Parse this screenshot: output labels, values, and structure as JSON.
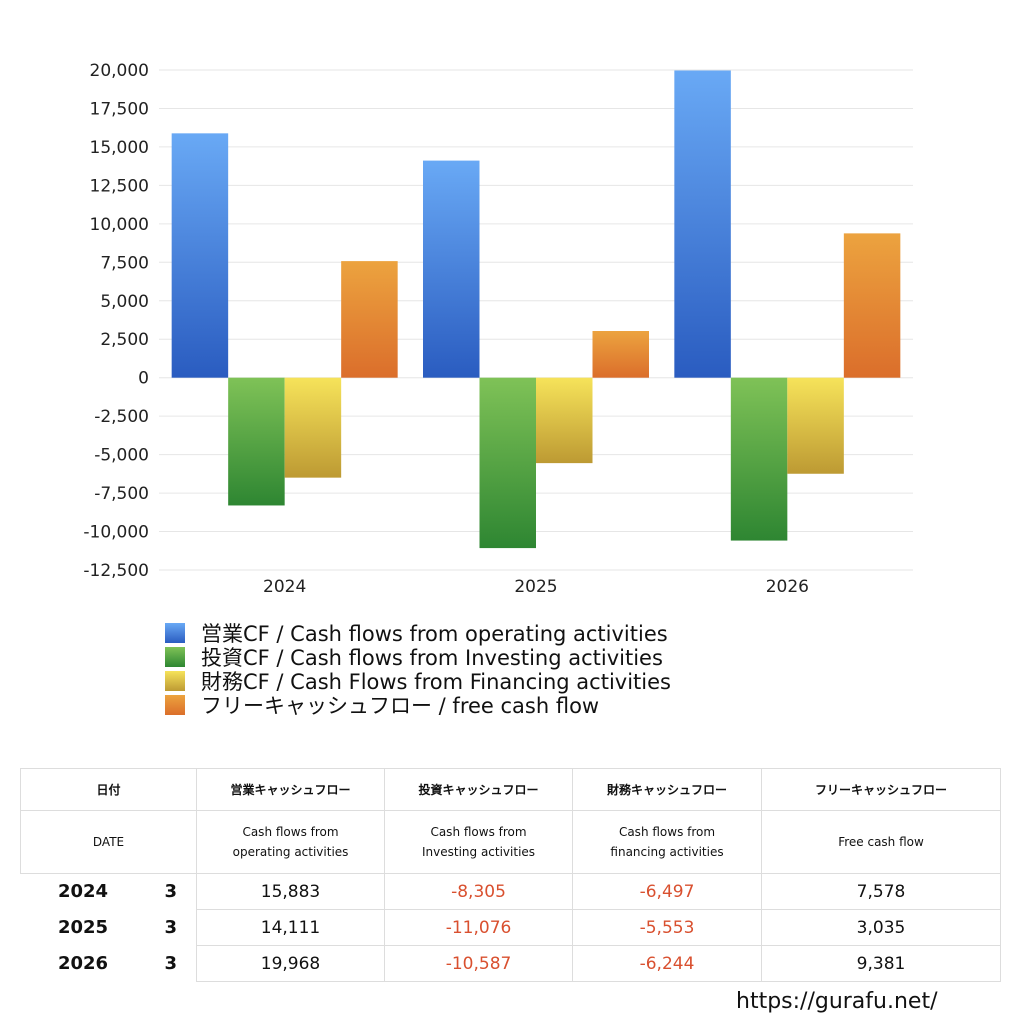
{
  "chart_data": {
    "type": "bar",
    "categories": [
      "2024",
      "2025",
      "2026"
    ],
    "series": [
      {
        "name": "営業CF / Cash flows from operating activities",
        "values": [
          15883,
          14111,
          19968
        ],
        "color_top": "#69a9f5",
        "color_bottom": "#2a5cc0"
      },
      {
        "name": "投資CF / Cash flows from Investing activities",
        "values": [
          -8305,
          -11076,
          -10587
        ],
        "color_top": "#7fc257",
        "color_bottom": "#2e8632"
      },
      {
        "name": "財務CF / Cash Flows from Financing activities",
        "values": [
          -6497,
          -5553,
          -6244
        ],
        "color_top": "#f6e35a",
        "color_bottom": "#bd9a33"
      },
      {
        "name": "フリーキャッシュフロー / free cash flow",
        "values": [
          7578,
          3035,
          9381
        ],
        "color_top": "#eca33f",
        "color_bottom": "#db6e2b"
      }
    ],
    "ylim": [
      -12500,
      20000
    ],
    "yticks": [
      20000,
      17500,
      15000,
      12500,
      10000,
      7500,
      5000,
      2500,
      0,
      -2500,
      -5000,
      -7500,
      -10000,
      -12500
    ],
    "ytick_labels": [
      "20,000",
      "17,500",
      "15,000",
      "12,500",
      "10,000",
      "7,500",
      "5,000",
      "2,500",
      "0",
      "-2,500",
      "-5,000",
      "-7,500",
      "-10,000",
      "-12,500"
    ],
    "grid": true,
    "legend_position": "bottom"
  },
  "legend": [
    {
      "label": "営業CF / Cash flows from operating activities",
      "color": "#4a86e0"
    },
    {
      "label": "投資CF / Cash flows from Investing activities",
      "color": "#55a446"
    },
    {
      "label": "財務CF / Cash Flows from Financing activities",
      "color": "#e8cf4a"
    },
    {
      "label": "フリーキャッシュフロー / free cash flow",
      "color": "#e58a36"
    }
  ],
  "table": {
    "header_jp": {
      "date": "日付",
      "operating": "営業キャッシュフロー",
      "investing": "投資キャッシュフロー",
      "financing": "財務キャッシュフロー",
      "free": "フリーキャッシュフロー"
    },
    "header_en": {
      "date": "DATE",
      "operating_1": "Cash flows from",
      "operating_2": "operating activities",
      "investing_1": "Cash flows from",
      "investing_2": "Investing activities",
      "financing_1": "Cash flows from",
      "financing_2": "financing activities",
      "free": "Free cash flow"
    },
    "rows": [
      {
        "year": "2024",
        "month": "3",
        "operating": "15,883",
        "investing": "-8,305",
        "financing": "-6,497",
        "free": "7,578"
      },
      {
        "year": "2025",
        "month": "3",
        "operating": "14,111",
        "investing": "-11,076",
        "financing": "-5,553",
        "free": "3,035"
      },
      {
        "year": "2026",
        "month": "3",
        "operating": "19,968",
        "investing": "-10,587",
        "financing": "-6,244",
        "free": "9,381"
      }
    ],
    "negative_color": "#d9502f"
  },
  "site_url": "https://gurafu.net/"
}
